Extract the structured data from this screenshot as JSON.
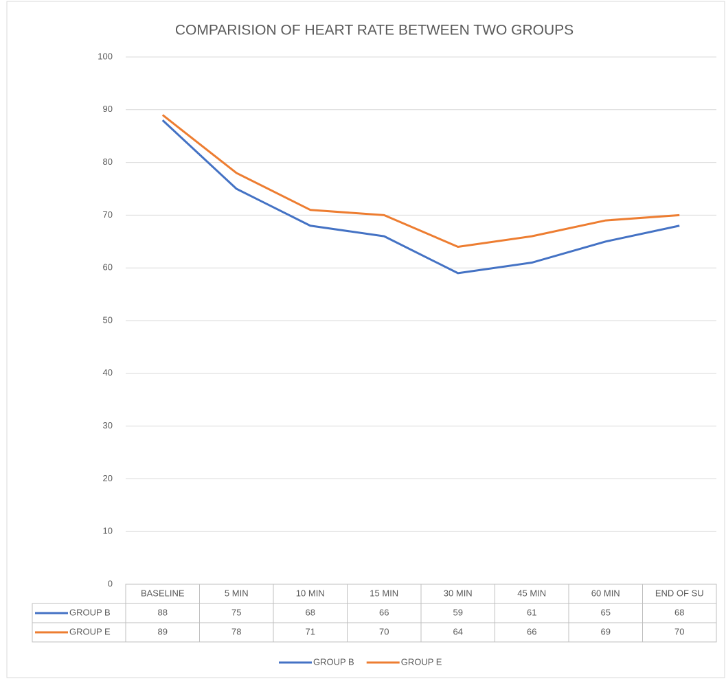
{
  "chart_data": {
    "type": "line",
    "title": "COMPARISION OF HEART RATE BETWEEN TWO GROUPS",
    "categories": [
      "BASELINE",
      "5 MIN",
      "10 MIN",
      "15 MIN",
      "30 MIN",
      "45 MIN",
      "60 MIN",
      "END OF SU"
    ],
    "series": [
      {
        "name": "GROUP B",
        "color": "#4472c4",
        "values": [
          88,
          75,
          68,
          66,
          59,
          61,
          65,
          68
        ]
      },
      {
        "name": "GROUP E",
        "color": "#ed7d31",
        "values": [
          89,
          78,
          71,
          70,
          64,
          66,
          69,
          70
        ]
      }
    ],
    "ylim": [
      0,
      100
    ],
    "yticks": [
      0,
      10,
      20,
      30,
      40,
      50,
      60,
      70,
      80,
      90,
      100
    ],
    "grid": true,
    "legend": "bottom",
    "data_table": true
  }
}
